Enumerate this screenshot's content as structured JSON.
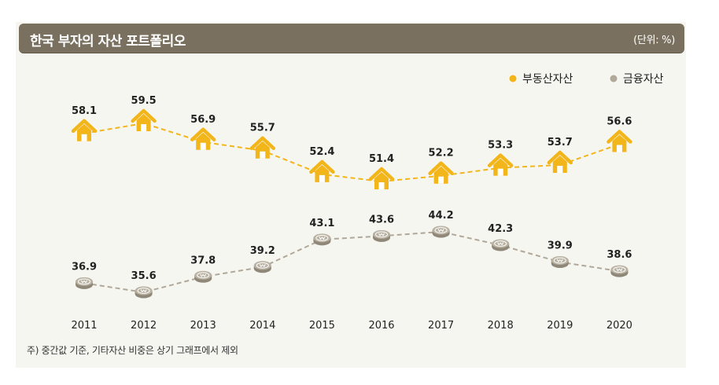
{
  "header": {
    "title": "한국 부자의 자산 포트폴리오",
    "unit": "(단위: %)"
  },
  "footnote": "주) 중간값 기준, 기타자산 비중은 상기 그래프에서 제외",
  "chart_data": {
    "type": "line",
    "title": "한국 부자의 자산 포트폴리오",
    "unit": "(단위: %)",
    "categories": [
      "2011",
      "2012",
      "2013",
      "2014",
      "2015",
      "2016",
      "2017",
      "2018",
      "2019",
      "2020"
    ],
    "series": [
      {
        "name": "부동산자산",
        "values": [
          58.1,
          59.5,
          56.9,
          55.7,
          52.4,
          51.4,
          52.2,
          53.3,
          53.7,
          56.6
        ],
        "color": "#f2b61b",
        "marker": "house-icon"
      },
      {
        "name": "금융자산",
        "values": [
          36.9,
          35.6,
          37.8,
          39.2,
          43.1,
          43.6,
          44.2,
          42.3,
          39.9,
          38.6
        ],
        "color": "#b0a898",
        "marker": "coin-icon"
      }
    ],
    "legend_position": "top-right",
    "line_style": "dashed",
    "grid": false
  }
}
